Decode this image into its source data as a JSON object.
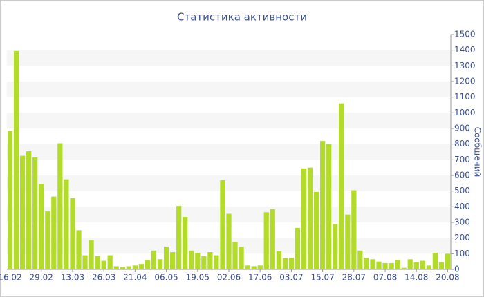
{
  "chart_data": {
    "type": "bar",
    "title": "Статистика активности",
    "y_label": "Сообщений",
    "categories": [
      "16.02",
      null,
      null,
      null,
      null,
      "29.02",
      null,
      null,
      null,
      null,
      "13.03",
      null,
      null,
      null,
      null,
      "26.03",
      null,
      null,
      null,
      null,
      "21.04",
      null,
      null,
      null,
      null,
      "06.05",
      null,
      null,
      null,
      null,
      "19.05",
      null,
      null,
      null,
      null,
      "02.06",
      null,
      null,
      null,
      null,
      "17.06",
      null,
      null,
      null,
      null,
      "03.07",
      null,
      null,
      null,
      null,
      "15.07",
      null,
      null,
      null,
      null,
      "28.07",
      null,
      null,
      null,
      null,
      "07.08",
      null,
      null,
      null,
      null,
      "14.08",
      null,
      null,
      null,
      null,
      "20.08"
    ],
    "values": [
      885,
      1395,
      725,
      755,
      715,
      545,
      370,
      465,
      805,
      575,
      455,
      250,
      90,
      185,
      85,
      55,
      90,
      20,
      15,
      20,
      25,
      35,
      60,
      120,
      65,
      145,
      110,
      405,
      335,
      120,
      105,
      85,
      110,
      90,
      570,
      355,
      175,
      145,
      25,
      20,
      25,
      365,
      385,
      115,
      75,
      75,
      265,
      645,
      650,
      495,
      820,
      800,
      290,
      1060,
      350,
      505,
      120,
      75,
      65,
      50,
      40,
      40,
      60,
      10,
      65,
      45,
      55,
      25,
      105,
      45,
      100
    ],
    "color": "#b3dc2a",
    "ylim": [
      0,
      1500
    ],
    "yticks": [
      0,
      100,
      200,
      300,
      400,
      500,
      600,
      700,
      800,
      900,
      1000,
      1100,
      1200,
      1300,
      1400,
      1500
    ],
    "grid": true
  }
}
